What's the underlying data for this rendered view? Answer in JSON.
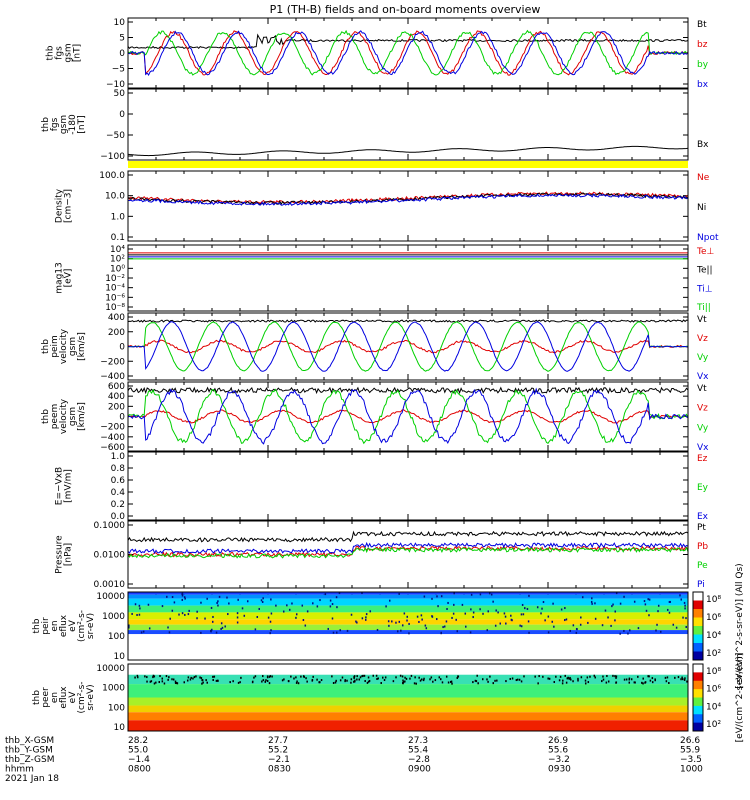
{
  "title": "P1 (TH-B) fields and on-board moments overview",
  "colors": {
    "black": "#000000",
    "red": "#e00000",
    "green": "#00d000",
    "blue": "#0000e0",
    "yellow": "#ffff00"
  },
  "chart_data": [
    {
      "type": "line",
      "ylabel": [
        "thb",
        "fgs",
        "gsm",
        "[nT]"
      ],
      "ylim": [
        -10,
        10
      ],
      "yticks": [
        "10",
        "5",
        "0",
        "−5",
        "−10"
      ],
      "series": [
        {
          "name": "Bt"
        },
        {
          "name": "bz"
        },
        {
          "name": "by"
        },
        {
          "name": "bx"
        }
      ]
    },
    {
      "type": "line",
      "ylabel": [
        "thb",
        "fgs",
        "gsm",
        "-180",
        "[nT]"
      ],
      "ylim": [
        -150,
        50
      ],
      "yticks": [
        "50",
        "0",
        "−50",
        "−100"
      ],
      "series": [
        {
          "name": "Bx"
        }
      ]
    },
    {
      "type": "line",
      "ylabel": [
        "Density",
        "[cm−3]"
      ],
      "ylim": [
        0.01,
        100
      ],
      "yscale": "log",
      "yticks": [
        "100.0",
        "10.0",
        "1.0",
        "0.1"
      ],
      "series": [
        {
          "name": "Ne"
        },
        {
          "name": "Ni"
        },
        {
          "name": "Npot"
        }
      ]
    },
    {
      "type": "line",
      "ylabel": [
        "mag13",
        "[eV]"
      ],
      "yscale": "log",
      "yticks": [
        "10⁴",
        "10²",
        "10⁰",
        "10⁻²",
        "10⁻⁴",
        "10⁻⁶",
        "10⁻⁸"
      ],
      "series": [
        {
          "name": "Te⊥"
        },
        {
          "name": "Te||"
        },
        {
          "name": "Ti⊥"
        },
        {
          "name": "Ti||"
        }
      ]
    },
    {
      "type": "line",
      "ylabel": [
        "thb",
        "peim",
        "velocity",
        "gsm",
        "[km/s]"
      ],
      "ylim": [
        -400,
        400
      ],
      "yticks": [
        "400",
        "200",
        "0",
        "−200",
        "−400"
      ],
      "series": [
        {
          "name": "Vt"
        },
        {
          "name": "Vz"
        },
        {
          "name": "Vy"
        },
        {
          "name": "Vx"
        }
      ]
    },
    {
      "type": "line",
      "ylabel": [
        "thb",
        "peem",
        "velocity",
        "gsm",
        "[km/s]"
      ],
      "ylim": [
        -600,
        600
      ],
      "yticks": [
        "600",
        "400",
        "200",
        "0",
        "−200",
        "−400",
        "−600"
      ],
      "series": [
        {
          "name": "Vt"
        },
        {
          "name": "Vz"
        },
        {
          "name": "Vy"
        },
        {
          "name": "Vx"
        }
      ]
    },
    {
      "type": "line",
      "ylabel": [
        "E=−VxB",
        "[mV/m]"
      ],
      "ylim": [
        0,
        1
      ],
      "yticks": [
        "1.0",
        "0.8",
        "0.6",
        "0.4",
        "0.2",
        "0.0"
      ],
      "series": [
        {
          "name": "Ez"
        },
        {
          "name": "Ey"
        },
        {
          "name": "Ex"
        }
      ]
    },
    {
      "type": "line",
      "ylabel": [
        "Pressure",
        "[nPa]"
      ],
      "yscale": "log",
      "yticks": [
        "0.1000",
        "0.0100",
        "0.0010"
      ],
      "series": [
        {
          "name": "Pt"
        },
        {
          "name": "Pb"
        },
        {
          "name": "Pe"
        },
        {
          "name": "Pi"
        }
      ]
    },
    {
      "type": "heatmap",
      "ylabel": [
        "thb",
        "peir",
        "en",
        "eflux",
        "eV",
        "(cm²-s-",
        "sr-eV)"
      ],
      "yscale": "log",
      "yticks": [
        "10000",
        "1000",
        "100",
        "10"
      ],
      "colorbar": {
        "label": "[eV/(cm^2-s-sr-eV)] (All Qs)",
        "ticks": [
          "10⁸",
          "10⁶",
          "10⁴",
          "10²"
        ]
      }
    },
    {
      "type": "heatmap",
      "ylabel": [
        "thb",
        "peer",
        "en",
        "eflux",
        "eV",
        "(cm²-s-",
        "sr-eV)"
      ],
      "yscale": "log",
      "yticks": [
        "10000",
        "1000",
        "100",
        "10"
      ],
      "colorbar": {
        "label": "[eV/(cm^2-s-sr-eV)]",
        "ticks": [
          "10⁸",
          "10⁶",
          "10⁴",
          "10²"
        ]
      }
    }
  ],
  "orbit": {
    "labels": [
      "thb_X-GSM",
      "thb_Y-GSM",
      "thb_Z-GSM",
      "hhmm",
      "2021 Jan 18"
    ],
    "columns": [
      [
        "28.2",
        "55.0",
        "−1.4",
        "0800"
      ],
      [
        "27.7",
        "55.2",
        "−2.1",
        "0830"
      ],
      [
        "27.3",
        "55.4",
        "−2.8",
        "0900"
      ],
      [
        "26.9",
        "55.6",
        "−3.2",
        "0930"
      ],
      [
        "26.6",
        "55.9",
        "−3.5",
        "1000"
      ]
    ]
  }
}
